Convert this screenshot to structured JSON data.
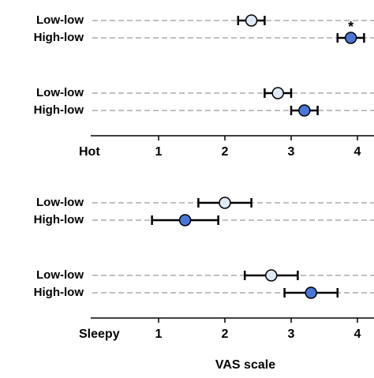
{
  "chart_data": [
    {
      "type": "dot",
      "title": "Hot",
      "series": [
        {
          "name": "Low-low",
          "color": "#dfe9f5",
          "values": [
            2.4,
            2.8
          ],
          "errors": [
            0.2,
            0.2
          ]
        },
        {
          "name": "High-low",
          "color": "#4a76d8",
          "values": [
            3.9,
            3.2
          ],
          "errors": [
            0.2,
            0.2
          ]
        }
      ],
      "annotations": [
        {
          "text": "*",
          "series": 1,
          "index": 0
        }
      ],
      "xlim": [
        0,
        4.25
      ],
      "xticks": [
        1,
        2,
        3,
        4
      ]
    },
    {
      "type": "dot",
      "title": "Sleepy",
      "xlabel": "VAS scale",
      "series": [
        {
          "name": "Low-low",
          "color": "#dfe9f5",
          "values": [
            2.0,
            2.7
          ],
          "errors": [
            0.4,
            0.4
          ]
        },
        {
          "name": "High-low",
          "color": "#4a76d8",
          "values": [
            1.4,
            3.3
          ],
          "errors": [
            0.5,
            0.4
          ]
        }
      ],
      "xlim": [
        0,
        4.25
      ],
      "xticks": [
        1,
        2,
        3,
        4
      ]
    }
  ]
}
